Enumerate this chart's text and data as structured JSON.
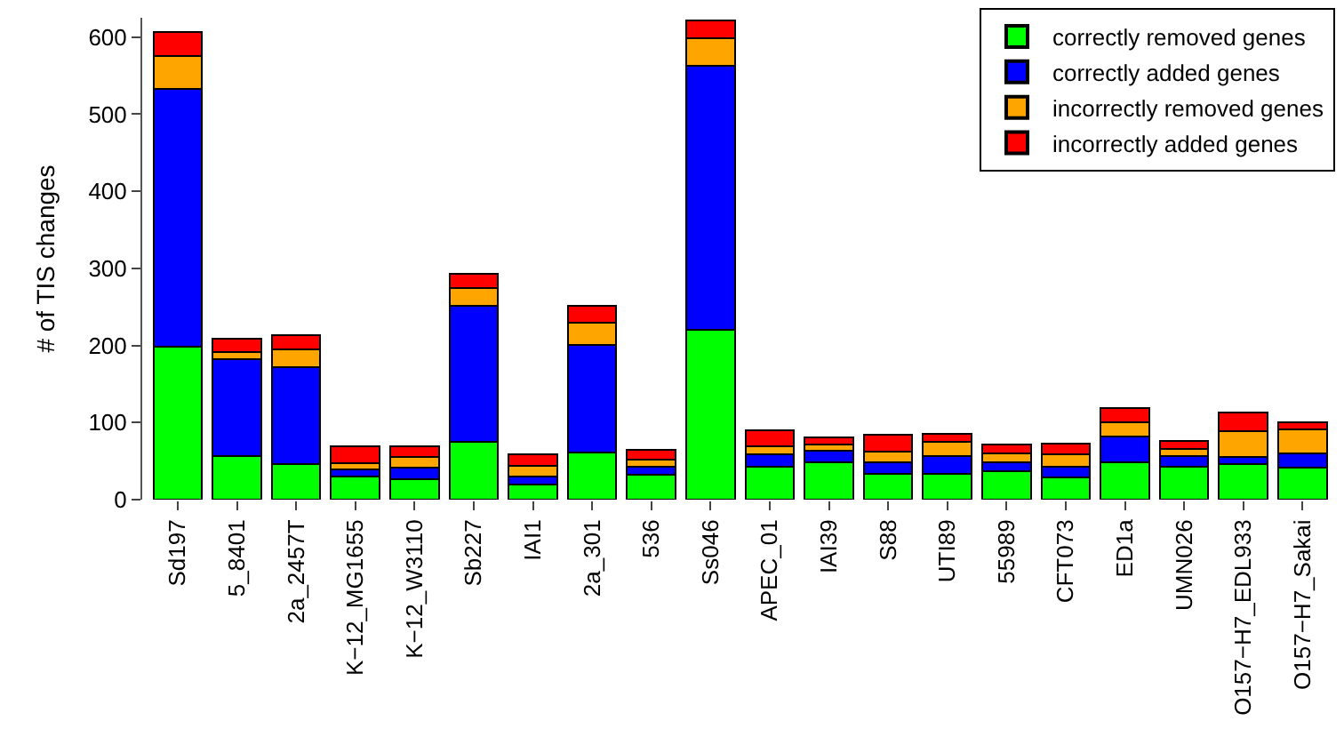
{
  "chart_data": {
    "type": "bar",
    "stacked": true,
    "ylabel": "# of TIS changes",
    "categories": [
      "Sd197",
      "5_8401",
      "2a_2457T",
      "K−12_MG1655",
      "K−12_W3110",
      "Sb227",
      "IAI1",
      "2a_301",
      "536",
      "Ss046",
      "APEC_01",
      "IAI39",
      "S88",
      "UTI89",
      "55989",
      "CFT073",
      "ED1a",
      "UMN026",
      "O157−H7_EDL933",
      "O157−H7_Sakai"
    ],
    "series": [
      {
        "name": "correctly removed genes",
        "color": "#00ff00",
        "values": [
          198,
          56,
          46,
          30,
          27,
          75,
          20,
          61,
          32,
          220,
          43,
          49,
          33,
          33,
          37,
          29,
          48,
          43,
          46,
          41
        ]
      },
      {
        "name": "correctly added genes",
        "color": "#0000ff",
        "values": [
          335,
          126,
          126,
          9,
          14,
          176,
          10,
          140,
          11,
          343,
          16,
          15,
          15,
          23,
          11,
          14,
          34,
          13,
          9,
          19
        ]
      },
      {
        "name": "incorrectly removed genes",
        "color": "#ffa500",
        "values": [
          42,
          9,
          23,
          8,
          14,
          23,
          14,
          28,
          9,
          35,
          10,
          7,
          14,
          19,
          12,
          16,
          18,
          10,
          34,
          31
        ]
      },
      {
        "name": "incorrectly added genes",
        "color": "#ff0000",
        "values": [
          31,
          18,
          18,
          22,
          14,
          19,
          15,
          22,
          13,
          23,
          21,
          10,
          22,
          10,
          12,
          14,
          19,
          10,
          24,
          9
        ]
      }
    ],
    "ylim": [
      0,
      625
    ],
    "yticks": [
      0,
      100,
      200,
      300,
      400,
      500,
      600
    ],
    "legend": "top right"
  }
}
